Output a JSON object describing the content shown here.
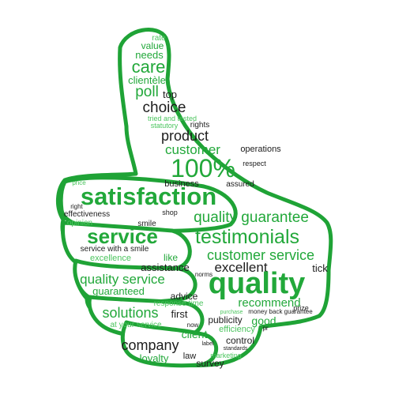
{
  "colors": {
    "outline": "#1fa336",
    "dark": "#1d1d1d",
    "green": "#22a83a",
    "light_green": "#4cc55f",
    "background": "#ffffff"
  },
  "words": {
    "rate": "rate",
    "value": "value",
    "needs": "needs",
    "care": "care",
    "clientele": "clientèle",
    "poll": "poll",
    "top": "top",
    "choice": "choice",
    "tried_and_tested": "tried and tested",
    "statutory": "statutory",
    "rights": "rights",
    "product": "product",
    "customer": "customer",
    "operations": "operations",
    "hundred_percent": "100%",
    "respect": "respect",
    "price": "price",
    "business": "business",
    "assured": "assured",
    "satisfaction": "satisfaction",
    "right": "right",
    "quality_guarantee": "quality guarantee",
    "effectiveness": "effectiveness",
    "shop": "shop",
    "opinion": "opinion",
    "smile": "smile",
    "service": "service",
    "testimonials": "testimonials",
    "service_with_a_smile": "service with a smile",
    "excellence": "excellence",
    "customer_service": "customer service",
    "like": "like",
    "assistance": "assistance",
    "norms": "norms",
    "excellent": "excellent",
    "tick": "tick",
    "quality_service": "quality service",
    "quality": "quality",
    "guaranteed": "guaranteed",
    "advice": "advice",
    "response_time": "response time",
    "recommend": "recommend",
    "prize": "prize",
    "purchase": "purchase",
    "money_back_guarantee": "money back guarantee",
    "solutions": "solutions",
    "first": "first",
    "publicity": "publicity",
    "good": "good",
    "at_your_service": "at your service",
    "now": "now",
    "efficiency": "efficiency",
    "pr": "pr",
    "client": "client",
    "control": "control",
    "label": "label",
    "standards": "standards",
    "company": "company",
    "marketing": "marketing",
    "loyalty": "loyalty",
    "law": "law",
    "survey": "survey"
  }
}
